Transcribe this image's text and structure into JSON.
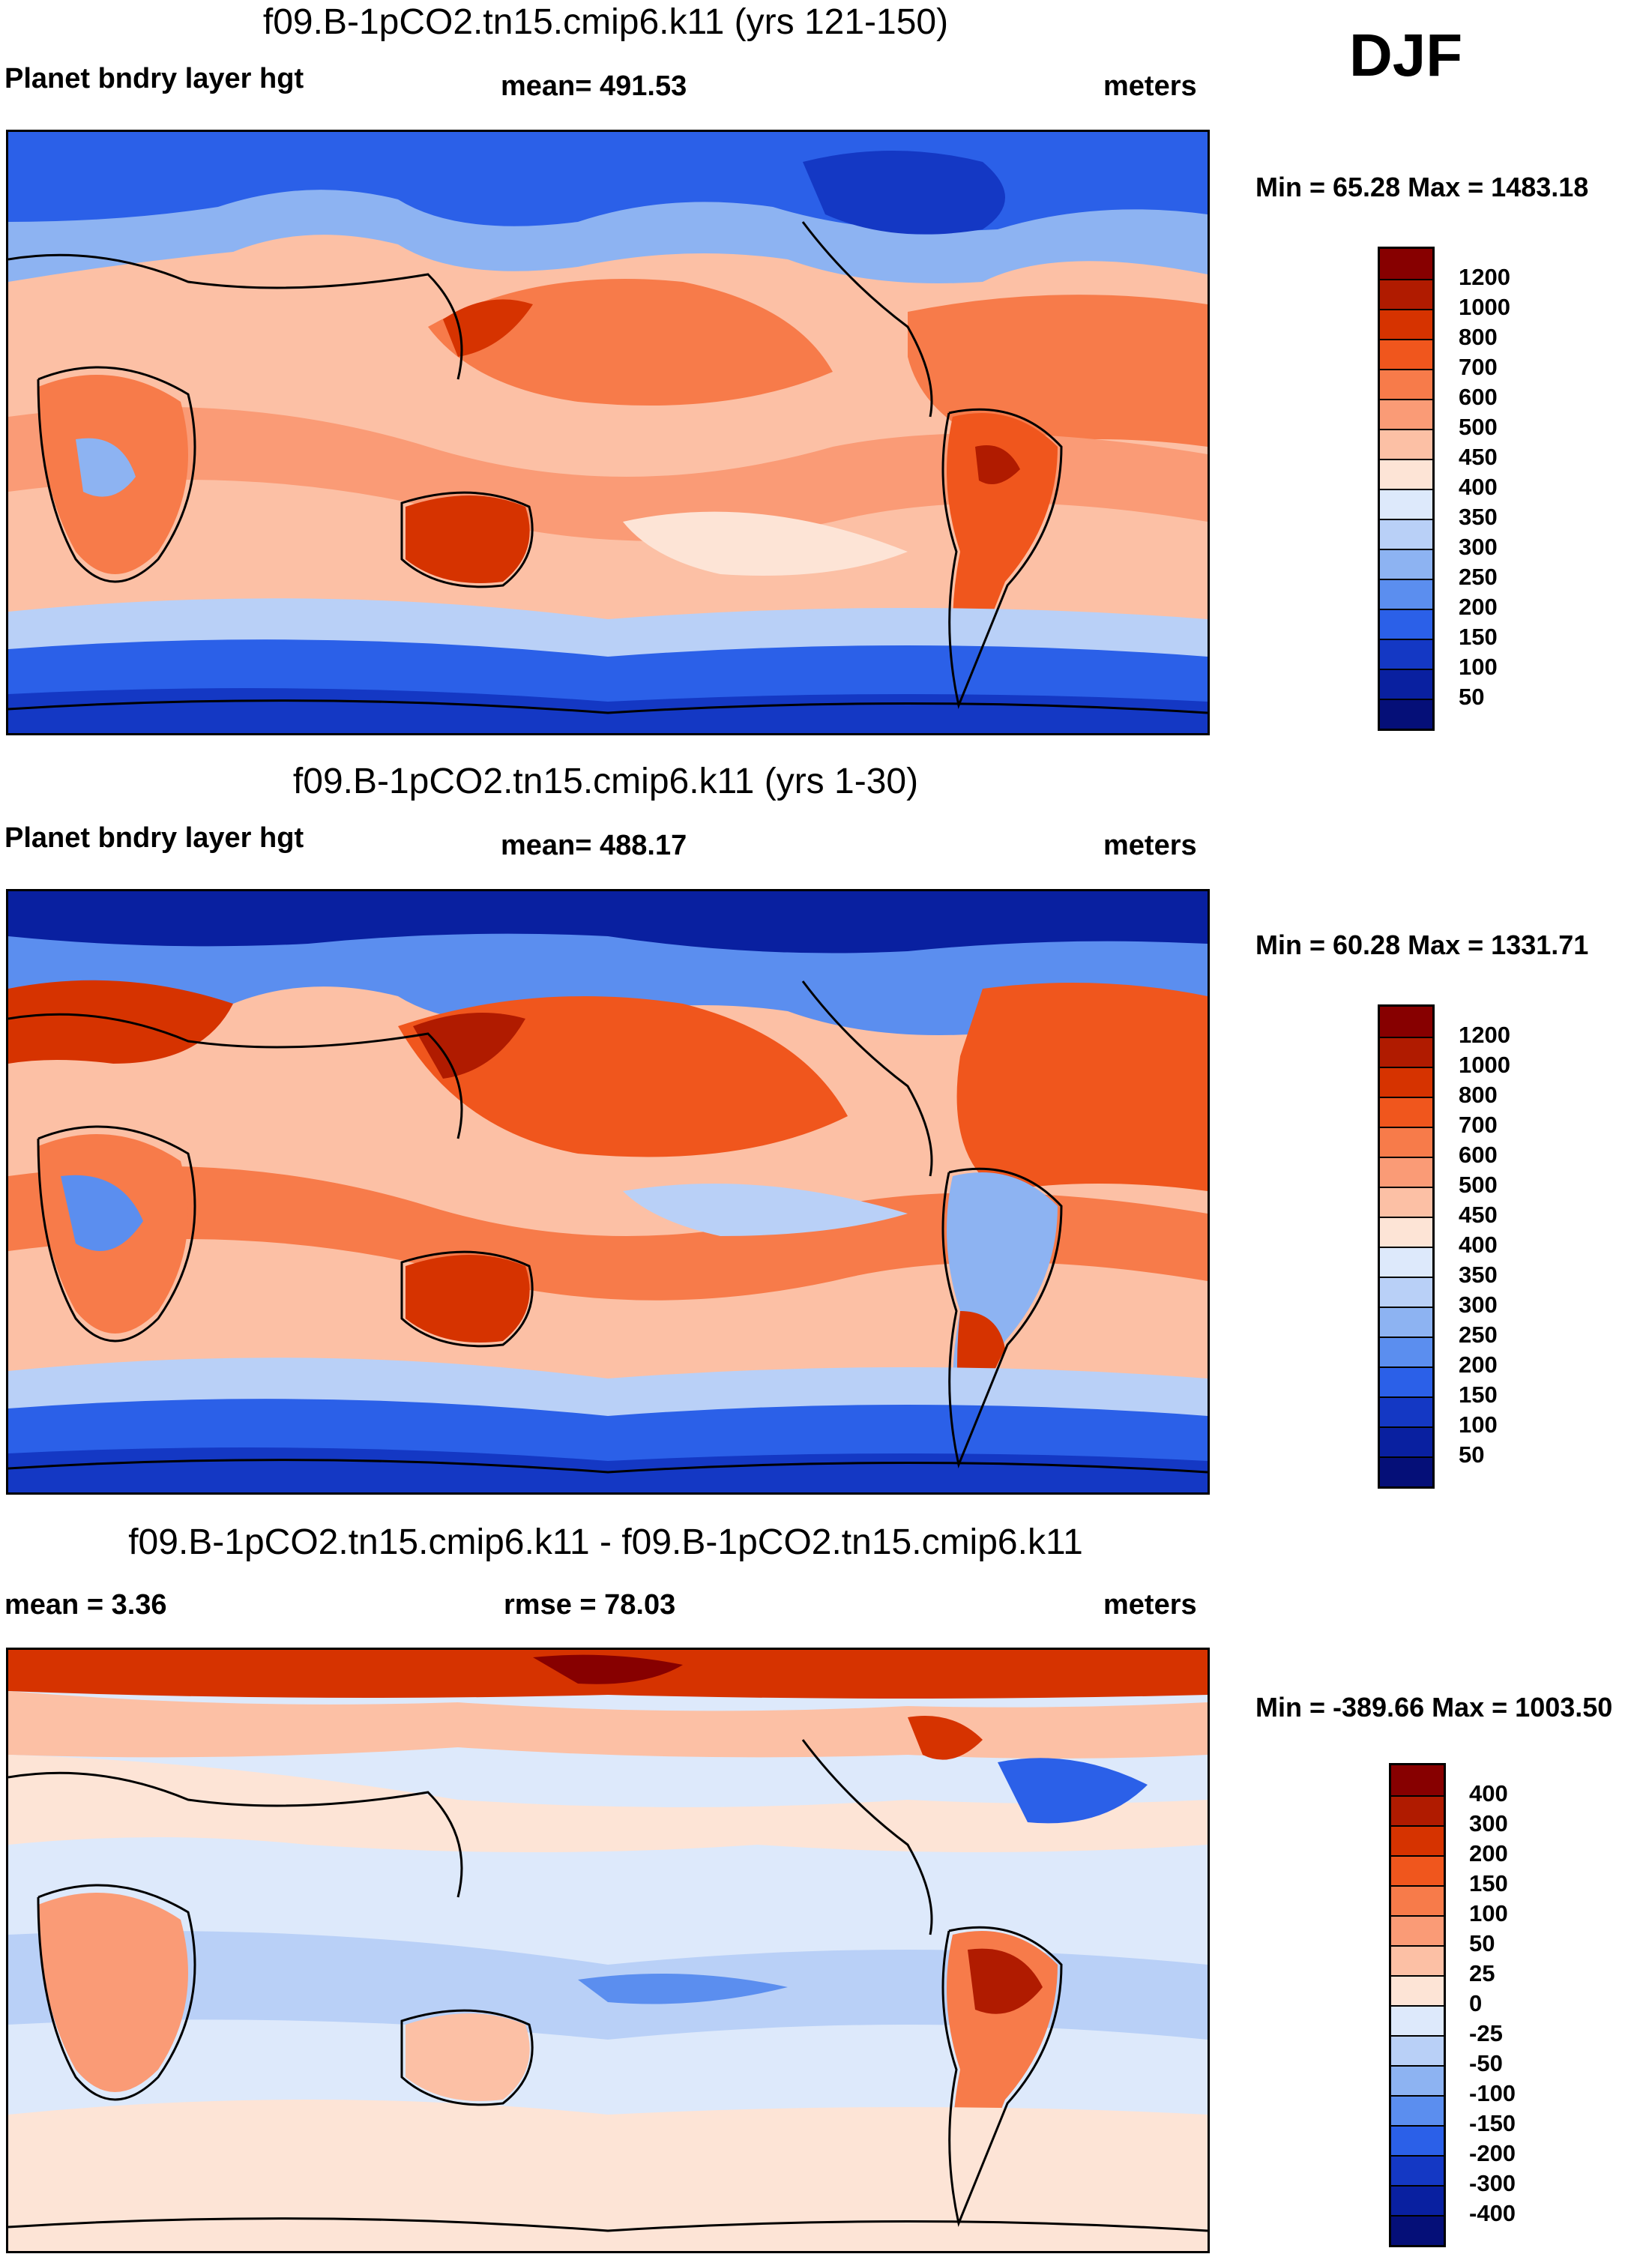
{
  "season": "DJF",
  "panels": [
    {
      "title": "f09.B-1pCO2.tn15.cmip6.k11 (yrs 121-150)",
      "left_label": "Planet bndry layer hgt",
      "center_label": "mean= 491.53",
      "right_label": "meters",
      "minmax": "Min =  65.28 Max = 1483.18",
      "kind": "field"
    },
    {
      "title": "f09.B-1pCO2.tn15.cmip6.k11 (yrs 1-30)",
      "left_label": "Planet bndry layer hgt",
      "center_label": "mean= 488.17",
      "right_label": "meters",
      "minmax": "Min =  60.28 Max = 1331.71",
      "kind": "field"
    },
    {
      "title": "f09.B-1pCO2.tn15.cmip6.k11 - f09.B-1pCO2.tn15.cmip6.k11",
      "left_label": "mean =   3.36",
      "center_label": "rmse =  78.03",
      "right_label": "meters",
      "minmax": "Min = -389.66 Max = 1003.50",
      "kind": "diff"
    }
  ],
  "colorbar_field": {
    "labels": [
      "1200",
      "1000",
      "800",
      "700",
      "600",
      "500",
      "450",
      "400",
      "350",
      "300",
      "250",
      "200",
      "150",
      "100",
      "50"
    ],
    "colors": [
      "#870000",
      "#b01b00",
      "#d63300",
      "#f0561d",
      "#f77b4a",
      "#fa9b76",
      "#fcc0a5",
      "#fde4d6",
      "#dde9fb",
      "#b9d0f7",
      "#8db3f2",
      "#5b8eef",
      "#2b60e8",
      "#1438c4",
      "#0920a0",
      "#050f78"
    ]
  },
  "colorbar_diff": {
    "labels": [
      "400",
      "300",
      "200",
      "150",
      "100",
      "50",
      "25",
      "0",
      "-25",
      "-50",
      "-100",
      "-150",
      "-200",
      "-300",
      "-400"
    ],
    "colors": [
      "#870000",
      "#b01b00",
      "#d63300",
      "#f0561d",
      "#f77b4a",
      "#fa9b76",
      "#fcc0a5",
      "#fde4d6",
      "#dde9fb",
      "#b9d0f7",
      "#8db3f2",
      "#5b8eef",
      "#2b60e8",
      "#1438c4",
      "#0920a0",
      "#050f78"
    ]
  },
  "chart_data": {
    "type": "heatmap",
    "variable": "Planet bndry layer hgt",
    "units": "meters",
    "season": "DJF",
    "maps": [
      {
        "title": "f09.B-1pCO2.tn15.cmip6.k11 (yrs 121-150)",
        "mean": 491.53,
        "min": 65.28,
        "max": 1483.18
      },
      {
        "title": "f09.B-1pCO2.tn15.cmip6.k11 (yrs 1-30)",
        "mean": 488.17,
        "min": 60.28,
        "max": 1331.71
      },
      {
        "title": "f09.B-1pCO2.tn15.cmip6.k11 - f09.B-1pCO2.tn15.cmip6.k11",
        "mean": 3.36,
        "rmse": 78.03,
        "min": -389.66,
        "max": 1003.5
      }
    ],
    "field_levels": [
      50,
      100,
      150,
      200,
      250,
      300,
      350,
      400,
      450,
      500,
      600,
      700,
      800,
      1000,
      1200
    ],
    "diff_levels": [
      -400,
      -300,
      -200,
      -150,
      -100,
      -50,
      -25,
      0,
      25,
      50,
      100,
      150,
      200,
      300,
      400
    ]
  }
}
